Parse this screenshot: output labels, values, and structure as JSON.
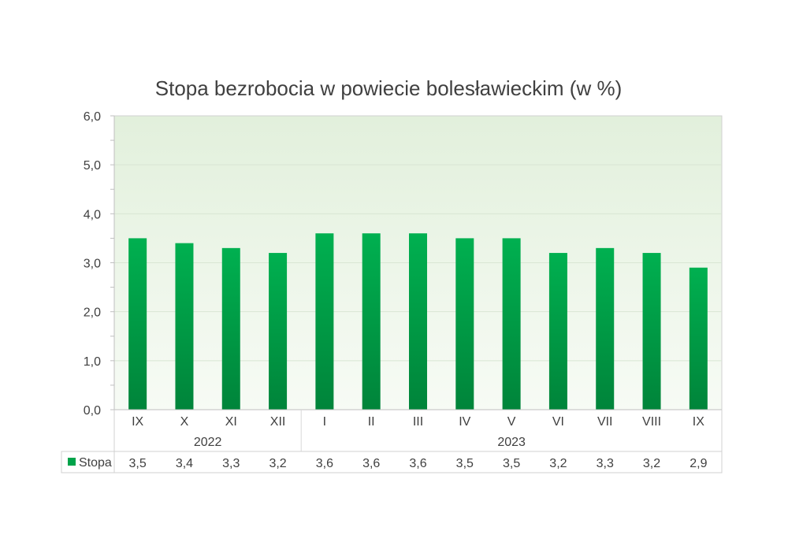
{
  "chart_data": {
    "type": "bar",
    "title": "Stopa bezrobocia w powiecie bolesławieckim (w %)",
    "categories": [
      "IX",
      "X",
      "XI",
      "XII",
      "I",
      "II",
      "III",
      "IV",
      "V",
      "VI",
      "VII",
      "VIII",
      "IX"
    ],
    "year_groups": [
      {
        "label": "2022",
        "start": 0,
        "end": 3
      },
      {
        "label": "2023",
        "start": 4,
        "end": 12
      }
    ],
    "series": [
      {
        "name": "Stopa",
        "values": [
          3.5,
          3.4,
          3.3,
          3.2,
          3.6,
          3.6,
          3.6,
          3.5,
          3.5,
          3.2,
          3.3,
          3.2,
          2.9
        ]
      }
    ],
    "table_values": [
      "3,5",
      "3,4",
      "3,3",
      "3,2",
      "3,6",
      "3,6",
      "3,6",
      "3,5",
      "3,5",
      "3,2",
      "3,3",
      "3,2",
      "2,9"
    ],
    "y_ticks": [
      "0,0",
      "1,0",
      "2,0",
      "3,0",
      "4,0",
      "5,0",
      "6,0"
    ],
    "ylim": [
      0,
      6
    ],
    "bar_color_top": "#00b050",
    "bar_color_bottom": "#00843a",
    "plot_bg_top": "#eef6ea",
    "plot_bg_bottom": "#ffffff"
  }
}
